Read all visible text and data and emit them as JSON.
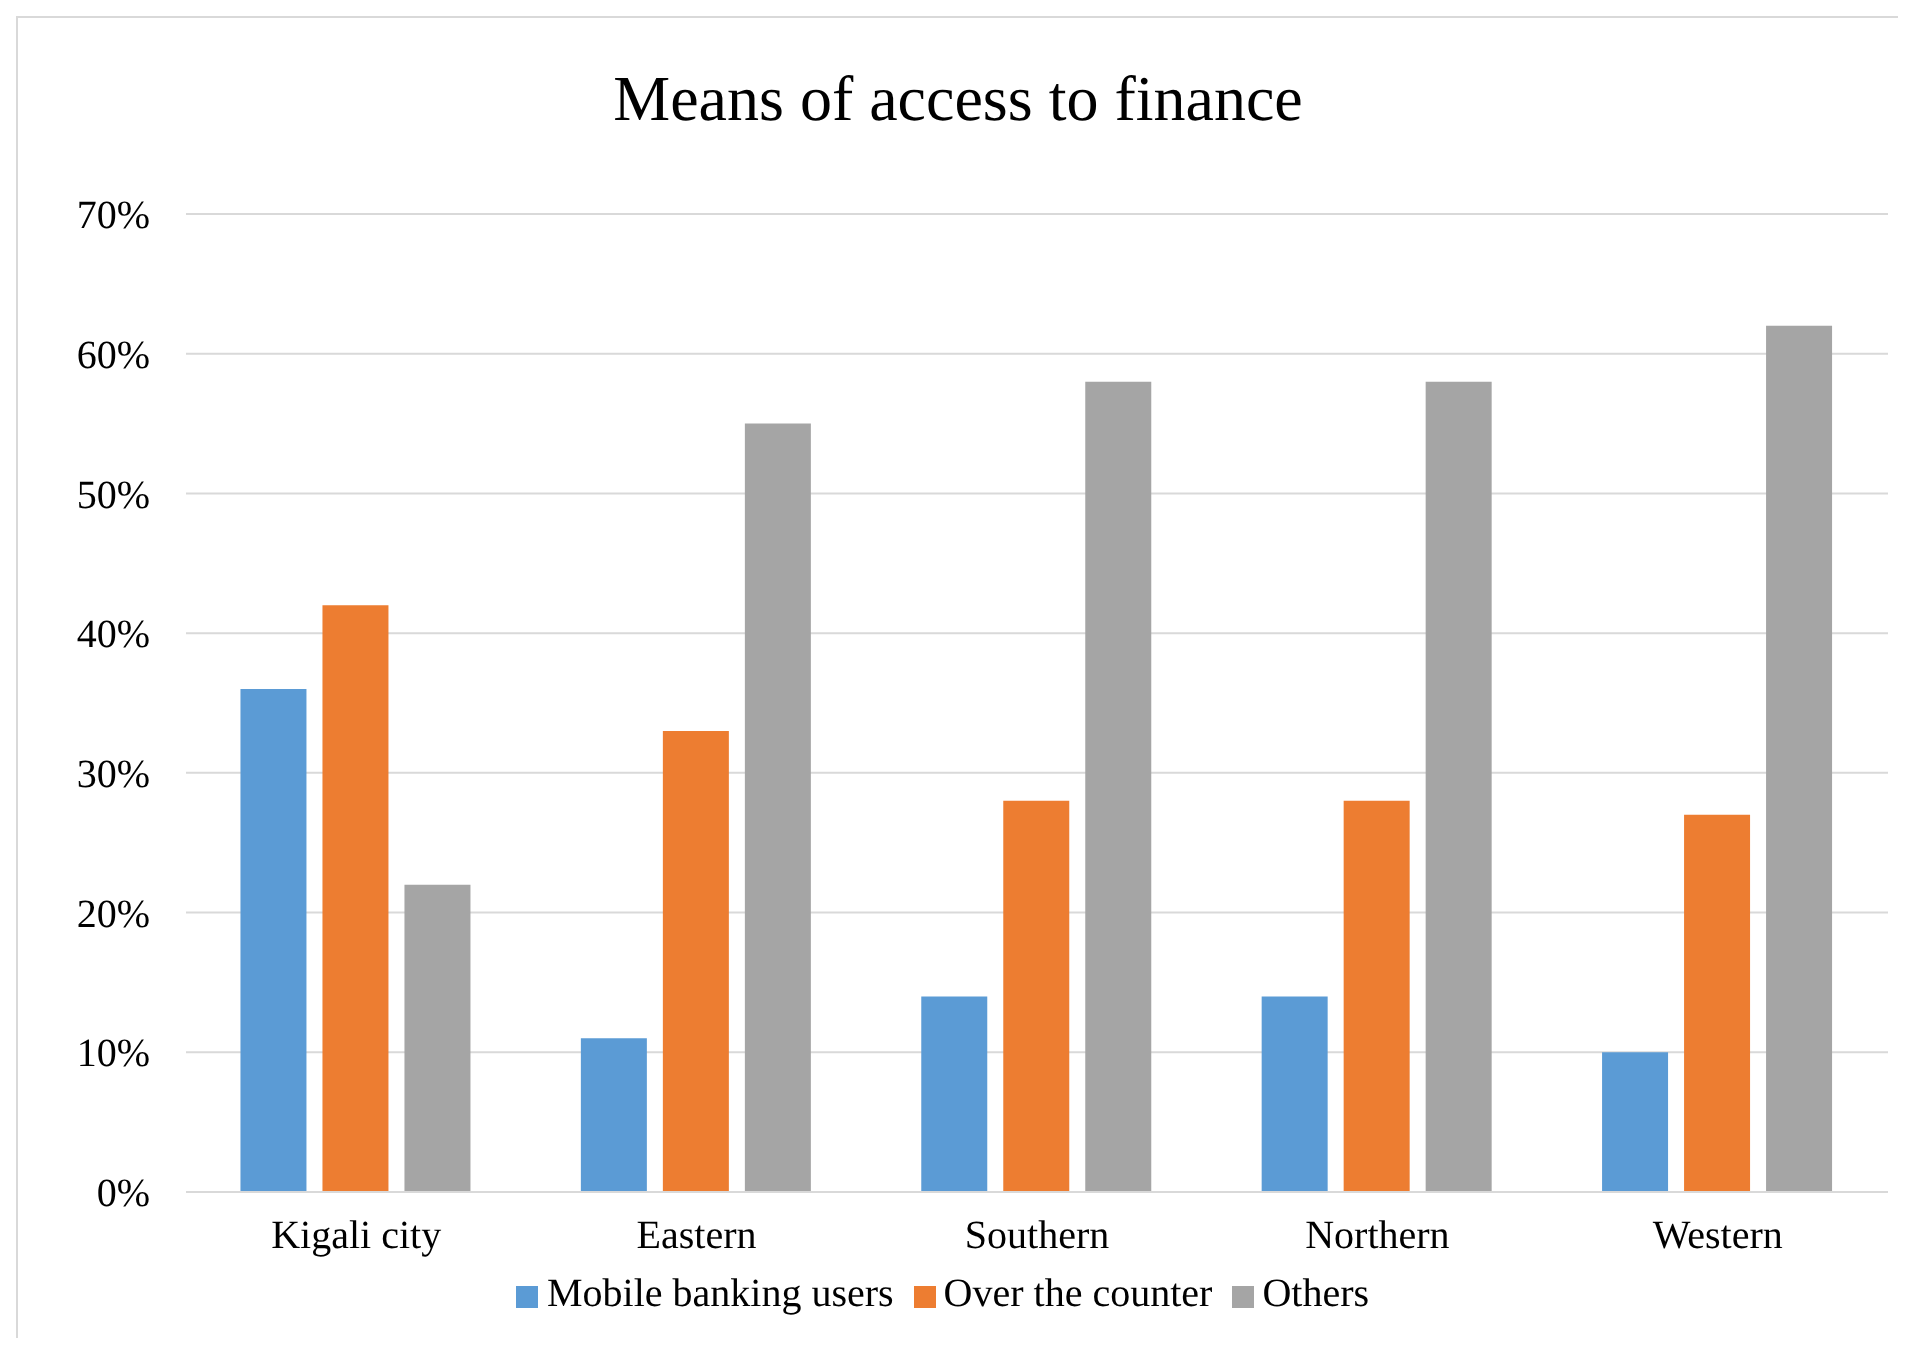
{
  "chart_data": {
    "type": "bar",
    "title": "Means of access to finance",
    "categories": [
      "Kigali city",
      "Eastern",
      "Southern",
      "Northern",
      "Western"
    ],
    "series": [
      {
        "name": "Mobile banking users",
        "color": "#5b9bd5",
        "values": [
          36,
          11,
          14,
          14,
          10
        ]
      },
      {
        "name": "Over the counter",
        "color": "#ed7d31",
        "values": [
          42,
          33,
          28,
          28,
          27
        ]
      },
      {
        "name": "Others",
        "color": "#a5a5a5",
        "values": [
          22,
          55,
          58,
          58,
          62
        ]
      }
    ],
    "ylim": [
      0,
      70
    ],
    "yticks": [
      {
        "value": 0,
        "label": "0%"
      },
      {
        "value": 10,
        "label": "10%"
      },
      {
        "value": 20,
        "label": "20%"
      },
      {
        "value": 30,
        "label": "30%"
      },
      {
        "value": 40,
        "label": "40%"
      },
      {
        "value": 50,
        "label": "50%"
      },
      {
        "value": 60,
        "label": "60%"
      },
      {
        "value": 70,
        "label": "70%"
      }
    ],
    "grid": "y",
    "legend": "bottom"
  }
}
